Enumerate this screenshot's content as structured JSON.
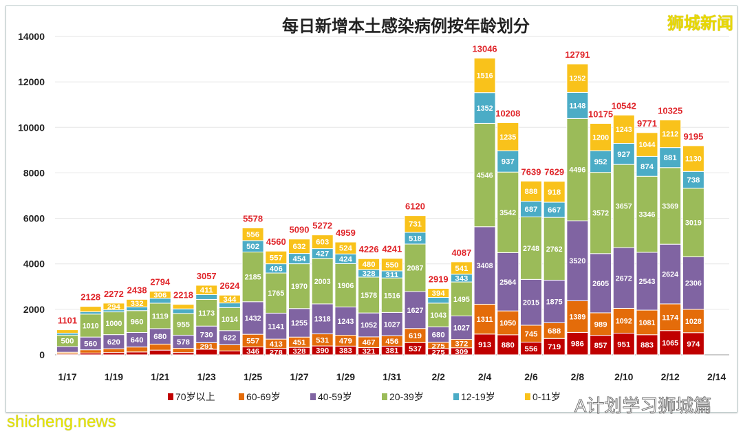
{
  "watermark_top": "狮城新闻",
  "watermark_bottom": "shicheng.news",
  "watermark_wechat": "A计划学习狮城篇",
  "chart_data": {
    "type": "bar",
    "stacked": true,
    "title": "每日新增本土感染病例按年龄划分",
    "xlabel": "",
    "ylabel": "",
    "ylim": [
      0,
      14000
    ],
    "yticks": [
      0,
      2000,
      4000,
      6000,
      8000,
      10000,
      12000,
      14000
    ],
    "grid": true,
    "legend_position": "bottom",
    "categories": [
      "1/17",
      "1/18",
      "1/19",
      "1/20",
      "1/21",
      "1/22",
      "1/23",
      "1/24",
      "1/25",
      "1/26",
      "1/27",
      "1/28",
      "1/29",
      "1/30",
      "1/31",
      "2/1",
      "2/2",
      "2/3",
      "2/4",
      "2/5",
      "2/6",
      "2/7",
      "2/8",
      "2/9",
      "2/10",
      "2/11",
      "2/12",
      "2/13"
    ],
    "xtick_labels": [
      "1/17",
      "1/19",
      "1/21",
      "1/23",
      "1/25",
      "1/27",
      "1/29",
      "1/31",
      "2/2",
      "2/4",
      "2/6",
      "2/8",
      "2/10",
      "2/12",
      "2/14"
    ],
    "totals": [
      1101,
      2128,
      2272,
      2438,
      2794,
      2218,
      3057,
      2624,
      5578,
      4560,
      5090,
      5272,
      4959,
      4226,
      4241,
      6120,
      2919,
      4087,
      13046,
      10208,
      7639,
      7629,
      12791,
      10175,
      10542,
      9771,
      10325,
      9195
    ],
    "series": [
      {
        "name": "70岁以上",
        "color": "#c00000",
        "values": [
          40,
          80,
          100,
          126,
          206,
          100,
          242,
          171,
          346,
          278,
          328,
          390,
          383,
          321,
          381,
          537,
          275,
          309,
          913,
          880,
          556,
          719,
          986,
          857,
          951,
          883,
          1065,
          974
        ]
      },
      {
        "name": "60-69岁",
        "color": "#e46c0a",
        "values": [
          74,
          141,
          168,
          217,
          265,
          185,
          291,
          271,
          557,
          413,
          451,
          531,
          479,
          467,
          456,
          619,
          275,
          372,
          1311,
          1050,
          745,
          688,
          1389,
          989,
          1092,
          1081,
          1174,
          1028
        ]
      },
      {
        "name": "40-59岁",
        "color": "#8064a2",
        "values": [
          250,
          560,
          620,
          640,
          680,
          578,
          730,
          622,
          1432,
          1141,
          1255,
          1318,
          1243,
          1052,
          1027,
          1627,
          680,
          1027,
          3408,
          2564,
          2015,
          1875,
          3520,
          2605,
          2672,
          2543,
          2624,
          2306
        ]
      },
      {
        "name": "20-39岁",
        "color": "#9bbb59",
        "values": [
          500,
          1010,
          1000,
          960,
          1119,
          955,
          1173,
          1014,
          2185,
          1765,
          1970,
          2003,
          1906,
          1578,
          1516,
          2087,
          1043,
          1495,
          4546,
          3542,
          2748,
          2762,
          4496,
          3572,
          3657,
          3346,
          3369,
          3019
        ]
      },
      {
        "name": "12-19岁",
        "color": "#4bacc6",
        "values": [
          87,
          102,
          90,
          163,
          218,
          201,
          210,
          202,
          502,
          406,
          454,
          427,
          424,
          328,
          311,
          518,
          252,
          343,
          1352,
          937,
          687,
          667,
          1148,
          952,
          927,
          874,
          881,
          738
        ]
      },
      {
        "name": "0-11岁",
        "color": "#f9c21b",
        "values": [
          150,
          235,
          294,
          332,
          306,
          199,
          411,
          344,
          556,
          557,
          632,
          603,
          524,
          480,
          550,
          731,
          394,
          541,
          1516,
          1235,
          888,
          918,
          1252,
          1200,
          1243,
          1044,
          1212,
          1130
        ]
      }
    ]
  }
}
